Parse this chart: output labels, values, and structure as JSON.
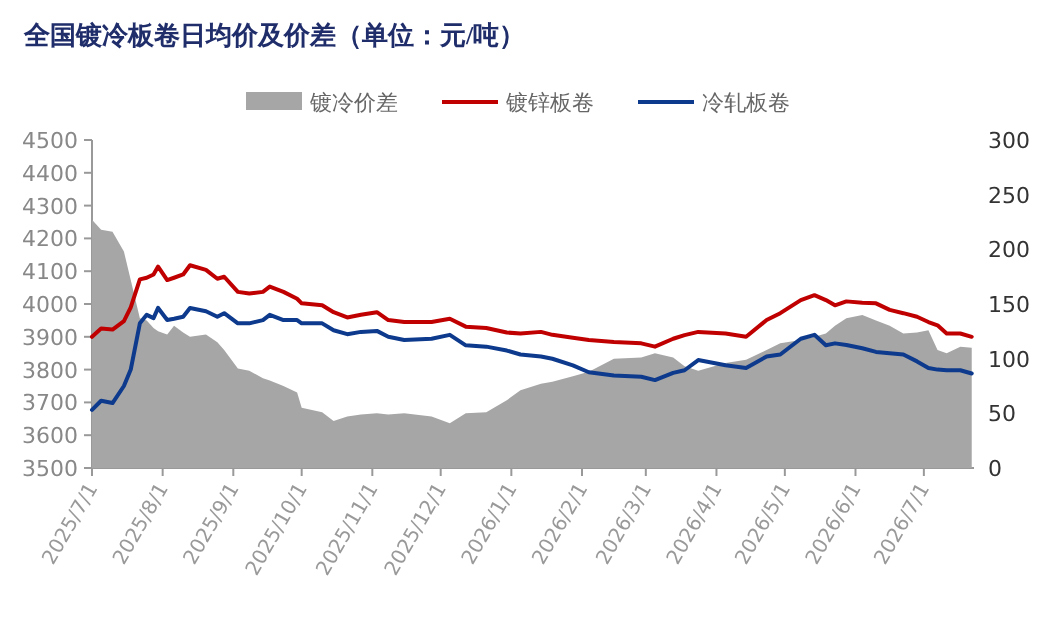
{
  "chart_data": {
    "type": "line",
    "title": "全国镀冷板卷日均价及价差（单位：元/吨）",
    "legend": "top",
    "x": [
      "2025-07-01",
      "2025-07-05",
      "2025-07-10",
      "2025-07-15",
      "2025-07-18",
      "2025-07-22",
      "2025-07-25",
      "2025-07-28",
      "2025-07-30",
      "2025-08-03",
      "2025-08-06",
      "2025-08-10",
      "2025-08-13",
      "2025-08-20",
      "2025-08-25",
      "2025-08-28",
      "2025-09-03",
      "2025-09-08",
      "2025-09-14",
      "2025-09-17",
      "2025-09-23",
      "2025-09-29",
      "2025-10-01",
      "2025-10-10",
      "2025-10-15",
      "2025-10-21",
      "2025-10-27",
      "2025-11-03",
      "2025-11-08",
      "2025-11-15",
      "2025-11-27",
      "2025-12-05",
      "2025-12-12",
      "2025-12-21",
      "2025-12-30",
      "2026-01-05",
      "2026-01-14",
      "2026-01-19",
      "2026-01-28",
      "2026-02-04",
      "2026-02-15",
      "2026-02-27",
      "2026-03-05",
      "2026-03-13",
      "2026-03-18",
      "2026-03-24",
      "2026-04-05",
      "2026-04-14",
      "2026-04-23",
      "2026-04-29",
      "2026-05-08",
      "2026-05-14",
      "2026-05-19",
      "2026-05-23",
      "2026-05-28",
      "2026-06-04",
      "2026-06-10",
      "2026-06-16",
      "2026-06-22",
      "2026-06-28",
      "2026-07-03",
      "2026-07-07",
      "2026-07-11",
      "2026-07-17",
      "2026-07-22"
    ],
    "series": [
      {
        "name": "镀冷价差",
        "type": "area",
        "axis": "y2",
        "color": "#a6a6a6",
        "values": [
          227,
          218,
          216,
          198,
          172,
          137,
          135,
          128,
          125,
          122,
          130,
          124,
          120,
          122,
          115,
          108,
          91,
          89,
          82,
          80,
          75,
          69,
          55,
          51,
          43,
          47,
          49,
          50,
          49,
          50,
          47,
          41,
          50,
          51,
          62,
          71,
          77,
          79,
          84,
          88,
          100,
          101,
          105,
          101,
          93,
          89,
          96,
          99,
          108,
          114,
          117,
          120,
          123,
          130,
          137,
          140,
          135,
          130,
          123,
          124,
          126,
          108,
          105,
          111,
          110
        ]
      },
      {
        "name": "镀锌板卷",
        "type": "line",
        "color": "#c00000",
        "values": [
          3900,
          3925,
          3922,
          3948,
          3990,
          4075,
          4080,
          4090,
          4114,
          4073,
          4080,
          4090,
          4118,
          4104,
          4077,
          4083,
          4037,
          4032,
          4037,
          4053,
          4037,
          4016,
          4002,
          3996,
          3975,
          3959,
          3967,
          3975,
          3951,
          3945,
          3945,
          3955,
          3931,
          3927,
          3913,
          3910,
          3915,
          3906,
          3897,
          3890,
          3884,
          3880,
          3870,
          3894,
          3905,
          3915,
          3910,
          3900,
          3951,
          3972,
          4012,
          4027,
          4012,
          3996,
          4008,
          4004,
          4002,
          3982,
          3972,
          3961,
          3945,
          3935,
          3910,
          3910,
          3900
        ]
      },
      {
        "name": "冷轧板卷",
        "type": "line",
        "color": "#0d3a8c",
        "values": [
          3677,
          3705,
          3698,
          3750,
          3800,
          3941,
          3967,
          3957,
          3988,
          3951,
          3955,
          3961,
          3988,
          3978,
          3961,
          3972,
          3941,
          3941,
          3951,
          3967,
          3951,
          3951,
          3941,
          3941,
          3920,
          3908,
          3915,
          3918,
          3900,
          3890,
          3894,
          3906,
          3874,
          3870,
          3858,
          3846,
          3840,
          3833,
          3813,
          3792,
          3782,
          3778,
          3768,
          3790,
          3798,
          3829,
          3813,
          3805,
          3840,
          3846,
          3894,
          3906,
          3874,
          3880,
          3875,
          3865,
          3854,
          3850,
          3846,
          3825,
          3805,
          3800,
          3798,
          3798,
          3788
        ]
      }
    ],
    "xlim": [
      "2025-07-01",
      "2026-07-23"
    ],
    "xticks": [
      {
        "value": "2025-07-01",
        "label": "2025/7/1"
      },
      {
        "value": "2025-08-01",
        "label": "2025/8/1"
      },
      {
        "value": "2025-09-01",
        "label": "2025/9/1"
      },
      {
        "value": "2025-10-01",
        "label": "2025/10/1"
      },
      {
        "value": "2025-11-01",
        "label": "2025/11/1"
      },
      {
        "value": "2025-12-01",
        "label": "2025/12/1"
      },
      {
        "value": "2026-01-01",
        "label": "2026/1/1"
      },
      {
        "value": "2026-02-01",
        "label": "2026/2/1"
      },
      {
        "value": "2026-03-01",
        "label": "2026/3/1"
      },
      {
        "value": "2026-04-01",
        "label": "2026/4/1"
      },
      {
        "value": "2026-05-01",
        "label": "2026/5/1"
      },
      {
        "value": "2026-06-01",
        "label": "2026/6/1"
      },
      {
        "value": "2026-07-01",
        "label": "2026/7/1"
      }
    ],
    "ylim": [
      3500,
      4500
    ],
    "yticks": [
      3500,
      3600,
      3700,
      3800,
      3900,
      4000,
      4100,
      4200,
      4300,
      4400,
      4500
    ],
    "y2lim": [
      0,
      300
    ],
    "y2ticks": [
      0,
      50,
      100,
      150,
      200,
      250,
      300
    ]
  }
}
